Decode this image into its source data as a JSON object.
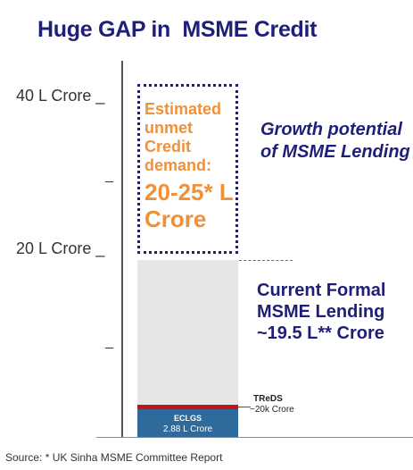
{
  "title": "Huge GAP in  MSME Credit",
  "axis": {
    "ticks": [
      {
        "label": "40 L Crore _"
      },
      {
        "label": "20 L Crore _"
      },
      {
        "label": "_"
      },
      {
        "label": "_"
      }
    ]
  },
  "gap_box": {
    "label": "Estimated unmet Credit demand:",
    "value": "20-25* L Crore"
  },
  "growth_label": "Growth potential of MSME Lending",
  "current_label": "Current Formal MSME Lending ~19.5 L** Crore",
  "eclgs": {
    "name": "ECLGS",
    "value": "2.88 L Crore"
  },
  "treds": {
    "name": "TReDS",
    "value": "~20k Crore"
  },
  "source": "Source: * UK Sinha MSME Committee Report",
  "colors": {
    "title": "#1f1f7a",
    "gap_text": "#f0913a",
    "current_bar": "#e6e6e6",
    "treds": "#c0151b",
    "eclgs": "#2e6b9c"
  },
  "chart_data": {
    "type": "bar",
    "unit": "L Crore",
    "stack": [
      {
        "name": "ECLGS",
        "value": 2.88
      },
      {
        "name": "TReDS",
        "value": 0.2
      },
      {
        "name": "Current Formal MSME Lending",
        "value": 19.5
      },
      {
        "name": "Estimated unmet Credit demand",
        "value_range": [
          20,
          25
        ]
      }
    ],
    "ylim": [
      0,
      40
    ]
  }
}
